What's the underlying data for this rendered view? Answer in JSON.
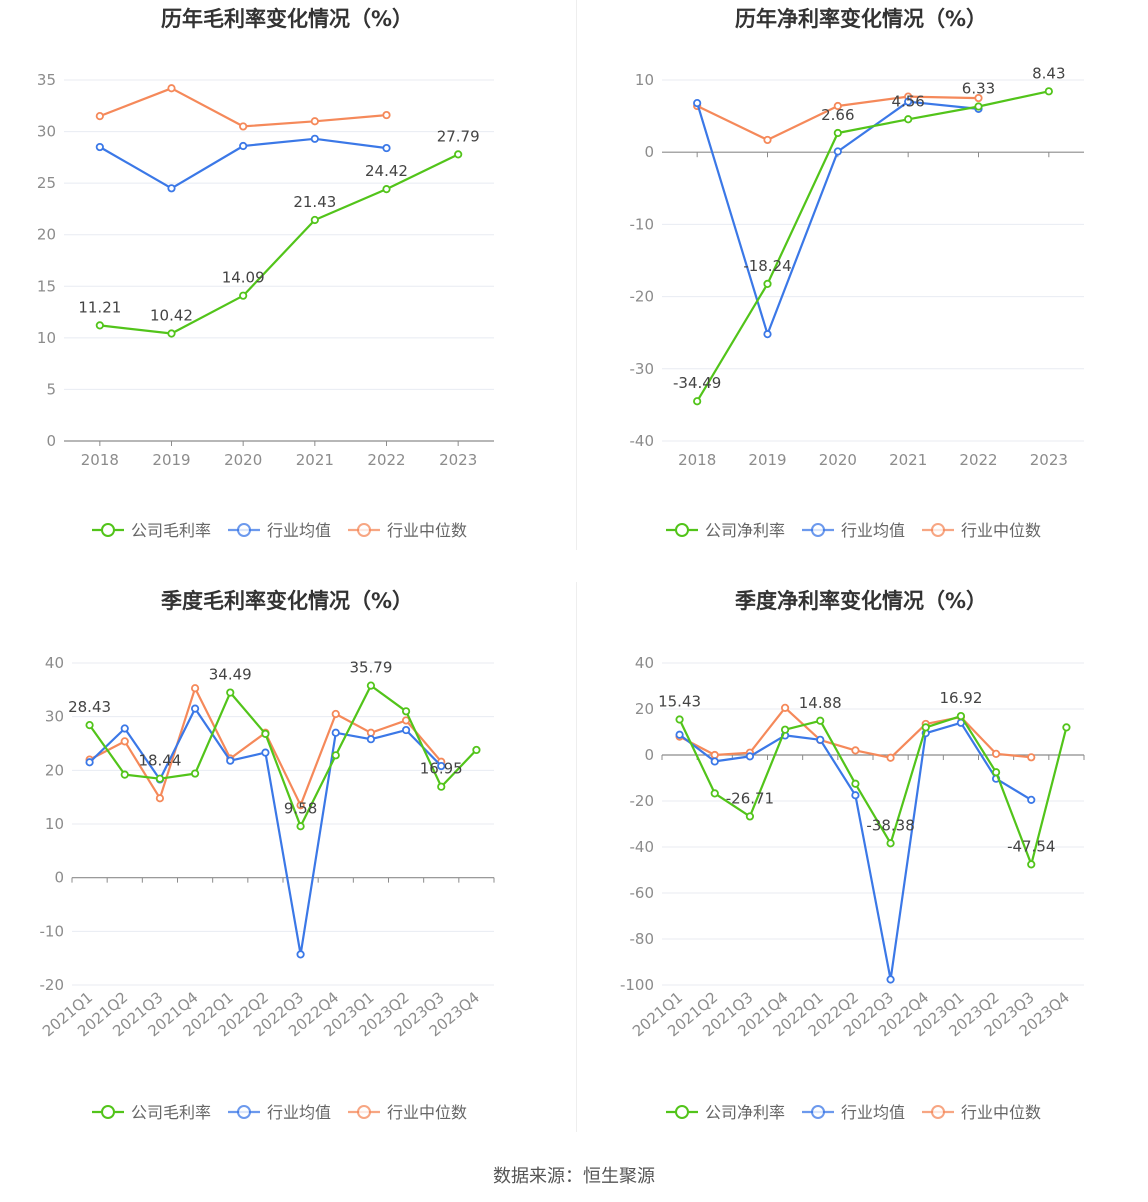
{
  "footer": {
    "source": "数据来源：恒生聚源"
  },
  "colors": {
    "company": "#52c41a",
    "avg": "#3b78e7",
    "median": "#f5895a",
    "grid": "#e8ebf2",
    "axis": "#8c8c8c",
    "title": "#333333",
    "label": "#444444",
    "tick": "#8c8c8c",
    "legend_text": "#666666"
  },
  "legend": {
    "gross": [
      "公司毛利率",
      "行业均值",
      "行业中位数"
    ],
    "net": [
      "公司净利率",
      "行业均值",
      "行业中位数"
    ]
  },
  "chart_data": [
    {
      "type": "line",
      "title": "历年毛利率变化情况（%）",
      "categories": [
        "2018",
        "2019",
        "2020",
        "2021",
        "2022",
        "2023"
      ],
      "ylim": [
        0,
        35
      ],
      "yticks": [
        0,
        5,
        10,
        15,
        20,
        25,
        30,
        35
      ],
      "grid": true,
      "legend_position": "bottom",
      "series": [
        {
          "name": "公司毛利率",
          "values": [
            11.21,
            10.42,
            14.09,
            21.43,
            24.42,
            27.79
          ],
          "labels": [
            "11.21",
            "10.42",
            "14.09",
            "21.43",
            "24.42",
            "27.79"
          ]
        },
        {
          "name": "行业均值",
          "values": [
            28.5,
            24.5,
            28.6,
            29.3,
            28.4,
            null
          ]
        },
        {
          "name": "行业中位数",
          "values": [
            31.5,
            34.2,
            30.5,
            31.0,
            31.6,
            null
          ]
        }
      ]
    },
    {
      "type": "line",
      "title": "历年净利率变化情况（%）",
      "categories": [
        "2018",
        "2019",
        "2020",
        "2021",
        "2022",
        "2023"
      ],
      "ylim": [
        -40,
        10
      ],
      "yticks": [
        -40,
        -30,
        -20,
        -10,
        0,
        10
      ],
      "grid": true,
      "legend_position": "bottom",
      "series": [
        {
          "name": "公司净利率",
          "values": [
            -34.49,
            -18.24,
            2.66,
            4.56,
            6.33,
            8.43
          ],
          "labels": [
            "-34.49",
            "-18.24",
            "2.66",
            "4.56",
            "6.33",
            "8.43"
          ]
        },
        {
          "name": "行业均值",
          "values": [
            6.8,
            -25.2,
            0.1,
            7.0,
            6.0,
            null
          ]
        },
        {
          "name": "行业中位数",
          "values": [
            6.4,
            1.7,
            6.4,
            7.7,
            7.5,
            null
          ]
        }
      ]
    },
    {
      "type": "line",
      "title": "季度毛利率变化情况（%）",
      "categories": [
        "2021Q1",
        "2021Q2",
        "2021Q3",
        "2021Q4",
        "2022Q1",
        "2022Q2",
        "2022Q3",
        "2022Q4",
        "2023Q1",
        "2023Q2",
        "2023Q3",
        "2023Q4"
      ],
      "ylim": [
        -20,
        40
      ],
      "yticks": [
        -20,
        -10,
        0,
        10,
        20,
        30,
        40
      ],
      "grid": true,
      "legend_position": "bottom",
      "series": [
        {
          "name": "公司毛利率",
          "values": [
            28.43,
            19.2,
            18.44,
            19.4,
            34.49,
            26.8,
            9.58,
            22.8,
            35.79,
            31.0,
            16.95,
            23.8
          ],
          "labels": [
            "28.43",
            "",
            "18.44",
            "",
            "34.49",
            "",
            "9.58",
            "",
            "35.79",
            "",
            "16.95",
            ""
          ]
        },
        {
          "name": "行业均值",
          "values": [
            21.5,
            27.8,
            18.3,
            31.5,
            21.8,
            23.3,
            -14.3,
            27.0,
            25.8,
            27.5,
            20.8,
            null
          ]
        },
        {
          "name": "行业中位数",
          "values": [
            22.0,
            25.4,
            14.8,
            35.3,
            22.2,
            27.0,
            13.5,
            30.5,
            27.0,
            29.3,
            21.6,
            null
          ]
        }
      ]
    },
    {
      "type": "line",
      "title": "季度净利率变化情况（%）",
      "categories": [
        "2021Q1",
        "2021Q2",
        "2021Q3",
        "2021Q4",
        "2022Q1",
        "2022Q2",
        "2022Q3",
        "2022Q4",
        "2023Q1",
        "2023Q2",
        "2023Q3",
        "2023Q4"
      ],
      "ylim": [
        -100,
        40
      ],
      "yticks": [
        -100,
        -80,
        -60,
        -40,
        -20,
        0,
        20,
        40
      ],
      "grid": true,
      "legend_position": "bottom",
      "series": [
        {
          "name": "公司净利率",
          "values": [
            15.43,
            -16.7,
            -26.71,
            11.0,
            14.88,
            -12.5,
            -38.38,
            12.0,
            16.92,
            -7.5,
            -47.54,
            12.0
          ],
          "labels": [
            "15.43",
            "",
            "-26.71",
            "",
            "14.88",
            "",
            "-38.38",
            "",
            "16.92",
            "",
            "-47.54",
            ""
          ]
        },
        {
          "name": "行业均值",
          "values": [
            8.8,
            -2.8,
            -0.6,
            8.5,
            6.6,
            -17.5,
            -97.6,
            9.5,
            14.0,
            -10.3,
            -19.5,
            null
          ]
        },
        {
          "name": "行业中位数",
          "values": [
            8.0,
            0.0,
            1.0,
            20.5,
            6.5,
            2.0,
            -1.2,
            13.5,
            16.5,
            0.5,
            -1.0,
            null
          ]
        }
      ]
    }
  ]
}
